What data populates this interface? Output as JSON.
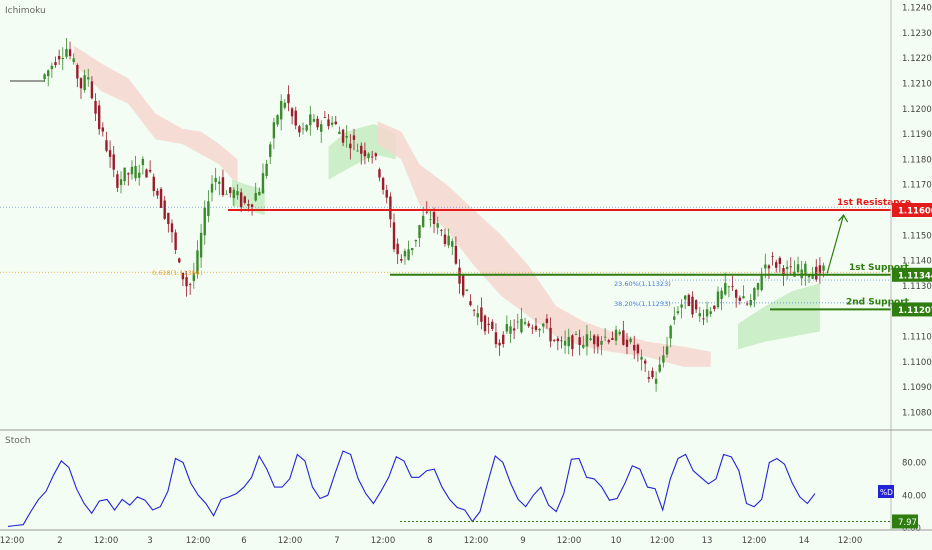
{
  "chart_data": [
    {
      "type": "candlestick",
      "indicator": "Ichimoku",
      "ylim": [
        1.1077,
        1.1243
      ],
      "yticks": [
        1.108,
        1.109,
        1.11,
        1.111,
        1.112,
        1.113,
        1.114,
        1.115,
        1.116,
        1.117,
        1.118,
        1.119,
        1.12,
        1.121,
        1.122,
        1.123,
        1.124
      ],
      "ytick_labels": [
        "1.10800",
        "1.10900",
        "1.11000",
        "1.11100",
        "1.11200",
        "1.11300",
        "1.11400",
        "1.11500",
        "1.11600",
        "1.11700",
        "1.11800",
        "1.11900",
        "1.12000",
        "1.12100",
        "1.12200",
        "1.12300",
        "1.12400"
      ],
      "xtick_labels": [
        "12:00",
        "2",
        "12:00",
        "3",
        "12:00",
        "6",
        "12:00",
        "7",
        "12:00",
        "8",
        "12:00",
        "9",
        "12:00",
        "10",
        "12:00",
        "13",
        "12:00",
        "14",
        "12:00"
      ],
      "close_path": [
        [
          0,
          1.1211
        ],
        [
          1.8,
          1.1211
        ],
        [
          2.2,
          1.1214
        ],
        [
          2.8,
          1.1221
        ],
        [
          3.3,
          1.1224
        ],
        [
          3.7,
          1.1217
        ],
        [
          4.1,
          1.1209
        ],
        [
          4.5,
          1.1213
        ],
        [
          5,
          1.1195
        ],
        [
          5.5,
          1.1185
        ],
        [
          6,
          1.1171
        ],
        [
          6.5,
          1.1174
        ],
        [
          7,
          1.1175
        ],
        [
          7.5,
          1.1178
        ],
        [
          8,
          1.1172
        ],
        [
          8.5,
          1.1163
        ],
        [
          9,
          1.1153
        ],
        [
          9.5,
          1.1137
        ],
        [
          10,
          1.1129
        ],
        [
          10.4,
          1.1137
        ],
        [
          10.8,
          1.1154
        ],
        [
          11.2,
          1.117
        ],
        [
          11.6,
          1.1174
        ],
        [
          12,
          1.1166
        ],
        [
          12.5,
          1.1167
        ],
        [
          13,
          1.1162
        ],
        [
          13.5,
          1.1164
        ],
        [
          14,
          1.117
        ],
        [
          14.5,
          1.1186
        ],
        [
          15,
          1.1201
        ],
        [
          15.4,
          1.1204
        ],
        [
          15.8,
          1.1194
        ],
        [
          16.2,
          1.1189
        ],
        [
          16.6,
          1.1196
        ],
        [
          17,
          1.1193
        ],
        [
          17.5,
          1.1196
        ],
        [
          18,
          1.1194
        ],
        [
          18.5,
          1.1189
        ],
        [
          19,
          1.1187
        ],
        [
          19.5,
          1.1183
        ],
        [
          20,
          1.1184
        ],
        [
          20.5,
          1.1175
        ],
        [
          21,
          1.116
        ],
        [
          21.3,
          1.1146
        ],
        [
          21.7,
          1.114
        ],
        [
          22,
          1.1144
        ],
        [
          22.4,
          1.1147
        ],
        [
          22.8,
          1.1156
        ],
        [
          23.2,
          1.1158
        ],
        [
          23.6,
          1.1154
        ],
        [
          24,
          1.115
        ],
        [
          24.5,
          1.1145
        ],
        [
          25,
          1.1131
        ],
        [
          25.5,
          1.1122
        ],
        [
          26,
          1.1118
        ],
        [
          26.5,
          1.1113
        ],
        [
          27,
          1.1107
        ],
        [
          27.5,
          1.1112
        ],
        [
          28,
          1.1114
        ],
        [
          28.5,
          1.1116
        ],
        [
          29,
          1.1115
        ],
        [
          29.5,
          1.1115
        ],
        [
          30,
          1.1109
        ],
        [
          30.5,
          1.1106
        ],
        [
          31,
          1.1108
        ],
        [
          31.5,
          1.1108
        ],
        [
          32,
          1.1109
        ],
        [
          32.5,
          1.1109
        ],
        [
          33,
          1.111
        ],
        [
          33.5,
          1.111
        ],
        [
          34,
          1.1109
        ],
        [
          34.5,
          1.1105
        ],
        [
          35,
          1.1098
        ],
        [
          35.4,
          1.1093
        ],
        [
          35.8,
          1.1095
        ],
        [
          36.2,
          1.1105
        ],
        [
          36.6,
          1.1117
        ],
        [
          37,
          1.1123
        ],
        [
          37.5,
          1.1124
        ],
        [
          38,
          1.1118
        ],
        [
          38.4,
          1.112
        ],
        [
          38.8,
          1.1122
        ],
        [
          39.2,
          1.1126
        ],
        [
          39.6,
          1.1129
        ],
        [
          40,
          1.1128
        ],
        [
          40.4,
          1.1124
        ],
        [
          40.8,
          1.1122
        ],
        [
          41.2,
          1.1128
        ],
        [
          41.6,
          1.1138
        ],
        [
          42,
          1.114
        ],
        [
          42.5,
          1.1138
        ],
        [
          43,
          1.1135
        ],
        [
          43.5,
          1.1136
        ],
        [
          44,
          1.1136
        ],
        [
          44.4,
          1.1135
        ],
        [
          44.8,
          1.1136
        ]
      ],
      "price_labels": {
        "resistance": "1.11600",
        "support1": "1.11344",
        "support2": "1.11207"
      },
      "levels": {
        "resistance": 1.116,
        "support1": 1.11344,
        "support2": 1.11207,
        "fib618": 1.11354,
        "fib236": 1.11323,
        "fib382": 1.11233
      },
      "annotations": {
        "indicator_label": "Ichimoku",
        "resistance_label": "1st Resistance",
        "support1_label": "1st Support",
        "support2_label": "2nd Support",
        "fib618_label": "0.618(1.11354)",
        "fib236_label": "23.60%(1.11323)",
        "fib382_label": "38.20%(1.11233)"
      },
      "colors": {
        "resistance": "#e31b1b",
        "support": "#2f7d0f",
        "candle_up": "#3b8a2e",
        "candle_down": "#9b1c2c",
        "cloud_bear": "#f5d6cf",
        "cloud_bull": "#c4ebc0",
        "fib618": "#e8a030",
        "fib": "#4a7ad8"
      }
    },
    {
      "type": "line",
      "indicator": "Stoch",
      "title": "Stoch",
      "ylim": [
        0,
        110
      ],
      "ytick_labels": [
        "80.00",
        "40.00",
        "0.00"
      ],
      "yticks": [
        80,
        40,
        0
      ],
      "series_label": "%D",
      "current_value": 44,
      "min_marker": "7.97",
      "min_value": 7.97,
      "values": [
        2,
        3,
        4,
        20,
        35,
        45,
        65,
        82,
        74,
        48,
        30,
        18,
        33,
        35,
        22,
        35,
        28,
        38,
        34,
        22,
        26,
        45,
        85,
        80,
        55,
        40,
        30,
        15,
        35,
        38,
        42,
        50,
        62,
        88,
        72,
        50,
        50,
        60,
        90,
        82,
        50,
        36,
        40,
        68,
        94,
        90,
        60,
        42,
        30,
        45,
        62,
        87,
        82,
        62,
        62,
        70,
        72,
        50,
        35,
        25,
        22,
        8,
        20,
        55,
        88,
        80,
        55,
        35,
        26,
        40,
        50,
        28,
        20,
        42,
        84,
        85,
        62,
        60,
        50,
        34,
        36,
        54,
        76,
        72,
        50,
        48,
        22,
        60,
        85,
        90,
        70,
        62,
        54,
        60,
        90,
        87,
        70,
        30,
        26,
        35,
        80,
        85,
        78,
        55,
        38,
        30,
        42
      ],
      "colors": {
        "line": "#2323d6",
        "badge": "#2323d6",
        "min_badge": "#2e7d0f"
      }
    }
  ]
}
